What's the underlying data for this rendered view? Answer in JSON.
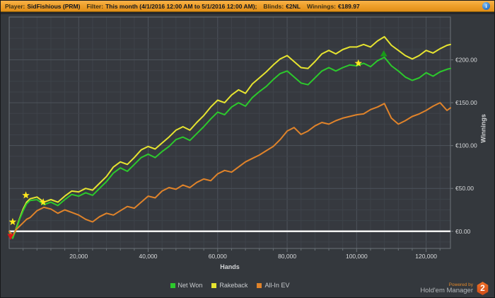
{
  "title_bar": {
    "segments": [
      {
        "label": "Player:",
        "value": "SidFishious (PRM)"
      },
      {
        "label": "Filter:",
        "value": "This month (4/1/2016 12:00 AM to 5/1/2016 12:00 AM);"
      },
      {
        "label": "Blinds:",
        "value": "€2NL"
      },
      {
        "label": "Winnings:",
        "value": "€189.97"
      }
    ],
    "info_icon_glyph": "i"
  },
  "branding": {
    "powered_by": "Powered by",
    "app_name": "Hold'em Manager",
    "badge_text": "2"
  },
  "theme": {
    "plot_bg": "#36393f",
    "grid_minor": "#3e434a",
    "grid_major": "#4d535b",
    "border": "#6b7278",
    "zero_line": "#f2f2f2",
    "axis_text": "#d8dadc"
  },
  "chart_data": {
    "type": "line",
    "title": "",
    "xlabel": "Hands",
    "ylabel": "Winnings",
    "x_unit": "thousands of hands",
    "y_unit": "EUR",
    "xlim": [
      0,
      127
    ],
    "ylim": [
      -20,
      250
    ],
    "grid": {
      "x_minor_step": 4,
      "y_minor_step": 12.5,
      "x_major_every": 20,
      "y_major_every": 50
    },
    "legend_position": "bottom-center",
    "x_ticks": [
      {
        "v": 20,
        "label": "20,000"
      },
      {
        "v": 40,
        "label": "40,000"
      },
      {
        "v": 60,
        "label": "60,000"
      },
      {
        "v": 80,
        "label": "80,000"
      },
      {
        "v": 100,
        "label": "100,000"
      },
      {
        "v": 120,
        "label": "120,000"
      }
    ],
    "y_ticks": [
      {
        "v": 0,
        "label": "€0.00"
      },
      {
        "v": 50,
        "label": "€50.00"
      },
      {
        "v": 100,
        "label": "€100.00"
      },
      {
        "v": 150,
        "label": "€150.00"
      },
      {
        "v": 200,
        "label": "€200.00"
      }
    ],
    "zero_line": 0,
    "x": [
      0,
      1,
      2,
      3,
      4,
      5,
      6,
      8,
      10,
      12,
      14,
      16,
      18,
      20,
      22,
      24,
      26,
      28,
      30,
      32,
      34,
      36,
      38,
      40,
      42,
      44,
      46,
      48,
      50,
      52,
      54,
      56,
      58,
      60,
      62,
      64,
      66,
      68,
      70,
      72,
      74,
      76,
      78,
      80,
      82,
      84,
      86,
      88,
      90,
      92,
      94,
      96,
      98,
      100,
      102,
      104,
      106,
      108,
      110,
      112,
      114,
      116,
      118,
      120,
      122,
      124,
      126,
      127
    ],
    "series": [
      {
        "name": "Net Won",
        "color": "#2cc92c",
        "final_value": 189.97,
        "values": [
          0,
          -8,
          2,
          14,
          24,
          32,
          36,
          37,
          31,
          34,
          30,
          37,
          43,
          41,
          45,
          42,
          50,
          58,
          68,
          74,
          70,
          78,
          86,
          90,
          86,
          93,
          99,
          107,
          110,
          106,
          114,
          122,
          131,
          139,
          136,
          145,
          150,
          146,
          156,
          163,
          169,
          177,
          184,
          187,
          180,
          173,
          171,
          179,
          187,
          191,
          187,
          191,
          194,
          193,
          196,
          192,
          199,
          203,
          193,
          187,
          180,
          176,
          179,
          185,
          181,
          186,
          189,
          190
        ]
      },
      {
        "name": "Rakeback",
        "color": "#e6e430",
        "values": [
          0,
          -8,
          3,
          15,
          26,
          34,
          38,
          40,
          34,
          37,
          34,
          41,
          47,
          46,
          50,
          48,
          56,
          64,
          75,
          81,
          78,
          86,
          95,
          99,
          96,
          103,
          110,
          118,
          122,
          118,
          127,
          135,
          145,
          153,
          150,
          159,
          165,
          161,
          172,
          179,
          186,
          194,
          201,
          205,
          198,
          191,
          190,
          198,
          207,
          211,
          207,
          212,
          215,
          215,
          218,
          215,
          222,
          227,
          217,
          211,
          205,
          201,
          205,
          211,
          208,
          213,
          217,
          218
        ]
      },
      {
        "name": "All-In EV",
        "color": "#e0832a",
        "values": [
          0,
          -5,
          2,
          6,
          10,
          14,
          16,
          24,
          28,
          26,
          21,
          25,
          22,
          19,
          14,
          11,
          17,
          21,
          19,
          24,
          29,
          27,
          34,
          41,
          39,
          47,
          51,
          49,
          54,
          51,
          57,
          61,
          59,
          67,
          71,
          69,
          75,
          81,
          85,
          89,
          94,
          99,
          107,
          117,
          121,
          113,
          117,
          123,
          127,
          125,
          129,
          132,
          134,
          136,
          137,
          142,
          145,
          149,
          132,
          125,
          129,
          134,
          137,
          141,
          146,
          150,
          141,
          144
        ]
      }
    ],
    "markers": [
      {
        "shape": "triangle-down",
        "color": "#e01414",
        "hands": 0.4,
        "value": -6
      },
      {
        "shape": "star",
        "color": "#ffe81e",
        "hands": 1.0,
        "value": 11
      },
      {
        "shape": "star",
        "color": "#ffe81e",
        "hands": 4.8,
        "value": 42
      },
      {
        "shape": "star",
        "color": "#ffe81e",
        "hands": 9.8,
        "value": 34
      },
      {
        "shape": "star",
        "color": "#ffe81e",
        "hands": 100.5,
        "value": 196
      },
      {
        "shape": "triangle-up",
        "color": "#189a18",
        "hands": 107.8,
        "value": 207
      }
    ]
  }
}
